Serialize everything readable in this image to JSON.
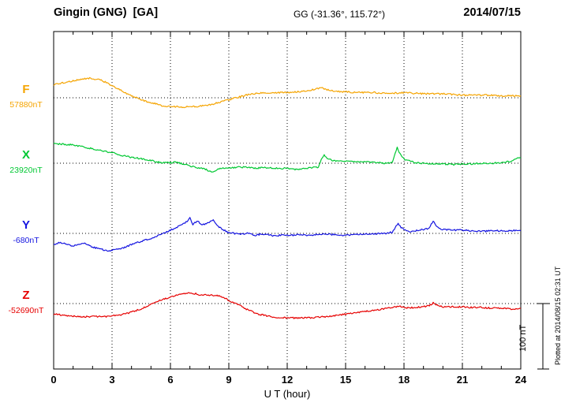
{
  "header": {
    "station": "Gingin (GNG)  [GA]",
    "coords": "GG (-31.36°, 115.72°)",
    "date": "2014/07/15"
  },
  "side_note": "Plotted at 2014/08/15 02:31 UT",
  "scale_bar": {
    "label": "100 nT",
    "span_nT": 100
  },
  "chart_data": {
    "type": "line",
    "title": "Gingin (GNG) [GA] magnetogram, 2014/07/15",
    "xlabel": "U T (hour)",
    "ylabel": "",
    "x_range": [
      0,
      24
    ],
    "x_ticks": [
      0,
      3,
      6,
      9,
      12,
      15,
      18,
      21,
      24
    ],
    "grid": "dotted vertical lines every 3 h; dotted horizontal baseline per component; 100 nT scale bar at right",
    "legend_position": "left baseline labels",
    "series": [
      {
        "name": "F",
        "color": "#f5a400",
        "baseline_nT": 57880,
        "baseline_label": "57880nT",
        "offsets_nT": [
          [
            0,
            20
          ],
          [
            0.5,
            23
          ],
          [
            1,
            26
          ],
          [
            1.5,
            29
          ],
          [
            1.9,
            30
          ],
          [
            2.4,
            27
          ],
          [
            2.8,
            22
          ],
          [
            3.2,
            15
          ],
          [
            3.6,
            9
          ],
          [
            4,
            3
          ],
          [
            4.4,
            -2
          ],
          [
            4.8,
            -6
          ],
          [
            5.2,
            -9
          ],
          [
            5.6,
            -12
          ],
          [
            6,
            -13
          ],
          [
            6.5,
            -14
          ],
          [
            7,
            -14
          ],
          [
            7.5,
            -13
          ],
          [
            8,
            -11
          ],
          [
            8.5,
            -7
          ],
          [
            9,
            -3
          ],
          [
            9.5,
            1
          ],
          [
            10,
            5
          ],
          [
            10.5,
            7
          ],
          [
            11,
            8
          ],
          [
            11.5,
            8
          ],
          [
            12,
            8
          ],
          [
            12.5,
            9
          ],
          [
            13,
            11
          ],
          [
            13.4,
            13
          ],
          [
            13.8,
            15
          ],
          [
            14.1,
            12
          ],
          [
            14.5,
            10
          ],
          [
            15,
            9
          ],
          [
            15.5,
            8
          ],
          [
            16,
            8
          ],
          [
            16.5,
            8
          ],
          [
            17,
            7
          ],
          [
            17.5,
            7
          ],
          [
            18,
            8
          ],
          [
            18.5,
            7
          ],
          [
            19,
            6
          ],
          [
            19.5,
            6
          ],
          [
            20,
            6
          ],
          [
            20.5,
            5
          ],
          [
            21,
            4
          ],
          [
            21.5,
            4
          ],
          [
            22,
            4
          ],
          [
            22.5,
            4
          ],
          [
            23,
            3
          ],
          [
            23.5,
            3
          ],
          [
            24,
            3
          ]
        ]
      },
      {
        "name": "X",
        "color": "#00c832",
        "baseline_nT": 23920,
        "baseline_label": "23920nT",
        "offsets_nT": [
          [
            0,
            30
          ],
          [
            0.5,
            29
          ],
          [
            1,
            28
          ],
          [
            1.5,
            25
          ],
          [
            2,
            22
          ],
          [
            2.5,
            19
          ],
          [
            3,
            16
          ],
          [
            3.5,
            12
          ],
          [
            4,
            9
          ],
          [
            4.5,
            7
          ],
          [
            5,
            4
          ],
          [
            5.5,
            1
          ],
          [
            6,
            1
          ],
          [
            6.3,
            2
          ],
          [
            6.6,
            -1
          ],
          [
            7,
            -4
          ],
          [
            7.4,
            -7
          ],
          [
            7.8,
            -9
          ],
          [
            8.1,
            -14
          ],
          [
            8.3,
            -11
          ],
          [
            8.6,
            -8
          ],
          [
            9,
            -7
          ],
          [
            9.5,
            -6
          ],
          [
            10,
            -6
          ],
          [
            10.3,
            -8
          ],
          [
            10.6,
            -7
          ],
          [
            11,
            -7
          ],
          [
            11.5,
            -8
          ],
          [
            12,
            -8
          ],
          [
            12.4,
            -10
          ],
          [
            12.8,
            -8
          ],
          [
            13.2,
            -7
          ],
          [
            13.6,
            -6
          ],
          [
            13.75,
            6
          ],
          [
            13.9,
            13
          ],
          [
            14.1,
            6
          ],
          [
            14.4,
            4
          ],
          [
            14.8,
            3
          ],
          [
            15.2,
            3
          ],
          [
            15.6,
            2
          ],
          [
            16,
            2
          ],
          [
            16.5,
            1
          ],
          [
            17,
            0
          ],
          [
            17.4,
            1
          ],
          [
            17.65,
            24
          ],
          [
            17.8,
            14
          ],
          [
            18,
            6
          ],
          [
            18.3,
            3
          ],
          [
            18.6,
            1
          ],
          [
            19,
            0
          ],
          [
            19.5,
            -1
          ],
          [
            20,
            -1
          ],
          [
            20.5,
            -2
          ],
          [
            21,
            -1
          ],
          [
            21.5,
            -1
          ],
          [
            22,
            0
          ],
          [
            22.5,
            0
          ],
          [
            23,
            1
          ],
          [
            23.5,
            3
          ],
          [
            23.8,
            7
          ],
          [
            24,
            9
          ]
        ]
      },
      {
        "name": "Y",
        "color": "#1414e0",
        "baseline_nT": -680,
        "baseline_label": "-680nT",
        "offsets_nT": [
          [
            0,
            -17
          ],
          [
            0.3,
            -14
          ],
          [
            0.6,
            -16
          ],
          [
            1,
            -19
          ],
          [
            1.3,
            -16
          ],
          [
            1.6,
            -15
          ],
          [
            2,
            -21
          ],
          [
            2.4,
            -24
          ],
          [
            2.8,
            -27
          ],
          [
            3.2,
            -25
          ],
          [
            3.6,
            -22
          ],
          [
            4,
            -17
          ],
          [
            4.5,
            -12
          ],
          [
            5,
            -8
          ],
          [
            5.5,
            -2
          ],
          [
            6,
            5
          ],
          [
            6.5,
            12
          ],
          [
            6.8,
            17
          ],
          [
            7,
            24
          ],
          [
            7.15,
            14
          ],
          [
            7.4,
            19
          ],
          [
            7.6,
            13
          ],
          [
            7.8,
            14
          ],
          [
            8,
            17
          ],
          [
            8.2,
            21
          ],
          [
            8.4,
            12
          ],
          [
            8.7,
            6
          ],
          [
            9,
            1
          ],
          [
            9.5,
            -1
          ],
          [
            10,
            0
          ],
          [
            10.3,
            -3
          ],
          [
            10.7,
            -1
          ],
          [
            11,
            -2
          ],
          [
            11.4,
            -4
          ],
          [
            11.8,
            -2
          ],
          [
            12.2,
            -3
          ],
          [
            12.6,
            -2
          ],
          [
            13,
            -3
          ],
          [
            13.5,
            -2
          ],
          [
            14,
            -1
          ],
          [
            14.5,
            -2
          ],
          [
            15,
            -3
          ],
          [
            15.5,
            -2
          ],
          [
            16,
            -1
          ],
          [
            16.5,
            -1
          ],
          [
            17,
            0
          ],
          [
            17.4,
            2
          ],
          [
            17.7,
            16
          ],
          [
            17.85,
            9
          ],
          [
            18,
            6
          ],
          [
            18.3,
            3
          ],
          [
            18.6,
            4
          ],
          [
            19,
            6
          ],
          [
            19.3,
            8
          ],
          [
            19.5,
            19
          ],
          [
            19.65,
            12
          ],
          [
            19.8,
            8
          ],
          [
            20,
            6
          ],
          [
            20.5,
            5
          ],
          [
            21,
            5
          ],
          [
            21.5,
            4
          ],
          [
            22,
            3
          ],
          [
            22.5,
            4
          ],
          [
            23,
            4
          ],
          [
            23.5,
            4
          ],
          [
            24,
            5
          ]
        ]
      },
      {
        "name": "Z",
        "color": "#e60000",
        "baseline_nT": -52690,
        "baseline_label": "-52690nT",
        "offsets_nT": [
          [
            0,
            -16
          ],
          [
            0.5,
            -18
          ],
          [
            1,
            -19
          ],
          [
            1.5,
            -20
          ],
          [
            2,
            -20
          ],
          [
            2.5,
            -20
          ],
          [
            3,
            -19
          ],
          [
            3.5,
            -17
          ],
          [
            4,
            -13
          ],
          [
            4.5,
            -8
          ],
          [
            5,
            -1
          ],
          [
            5.5,
            5
          ],
          [
            6,
            10
          ],
          [
            6.5,
            14
          ],
          [
            7,
            16
          ],
          [
            7.3,
            15
          ],
          [
            7.6,
            13
          ],
          [
            8,
            13
          ],
          [
            8.5,
            12
          ],
          [
            9,
            5
          ],
          [
            9.5,
            -2
          ],
          [
            10,
            -10
          ],
          [
            10.5,
            -16
          ],
          [
            11,
            -19
          ],
          [
            11.5,
            -21
          ],
          [
            12,
            -22
          ],
          [
            12.5,
            -22
          ],
          [
            13,
            -22
          ],
          [
            13.5,
            -21
          ],
          [
            14,
            -20
          ],
          [
            14.5,
            -18
          ],
          [
            15,
            -16
          ],
          [
            15.5,
            -14
          ],
          [
            16,
            -12
          ],
          [
            16.5,
            -10
          ],
          [
            17,
            -8
          ],
          [
            17.4,
            -6
          ],
          [
            17.8,
            -4
          ],
          [
            18.1,
            -7
          ],
          [
            18.5,
            -6
          ],
          [
            19,
            -5
          ],
          [
            19.3,
            -3
          ],
          [
            19.5,
            1
          ],
          [
            19.7,
            -2
          ],
          [
            20,
            -5
          ],
          [
            20.5,
            -5
          ],
          [
            21,
            -5
          ],
          [
            21.5,
            -6
          ],
          [
            22,
            -6
          ],
          [
            22.5,
            -7
          ],
          [
            23,
            -7
          ],
          [
            23.5,
            -8
          ],
          [
            24,
            -8
          ]
        ]
      }
    ]
  }
}
